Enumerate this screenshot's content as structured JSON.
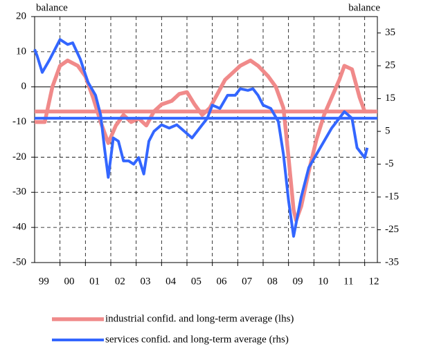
{
  "chart_data": {
    "type": "line",
    "ylabel": "balance",
    "y2label": "balance",
    "xlim": [
      1999,
      2012.5
    ],
    "xticks": [
      {
        "value": 1999.5,
        "label": "99"
      },
      {
        "value": 2000.5,
        "label": "00"
      },
      {
        "value": 2001.5,
        "label": "01"
      },
      {
        "value": 2002.5,
        "label": "02"
      },
      {
        "value": 2003.5,
        "label": "03"
      },
      {
        "value": 2004.5,
        "label": "04"
      },
      {
        "value": 2005.5,
        "label": "05"
      },
      {
        "value": 2006.5,
        "label": "06"
      },
      {
        "value": 2007.5,
        "label": "07"
      },
      {
        "value": 2008.5,
        "label": "08"
      },
      {
        "value": 2009.5,
        "label": "09"
      },
      {
        "value": 2010.5,
        "label": "10"
      },
      {
        "value": 2011.5,
        "label": "11"
      },
      {
        "value": 2012.5,
        "label": "12"
      }
    ],
    "xgrid": [
      2000,
      2001,
      2002,
      2003,
      2004,
      2005,
      2006,
      2007,
      2008,
      2009,
      2010,
      2011,
      2012
    ],
    "ylim": [
      -50,
      20
    ],
    "yticks": [
      -50,
      -40,
      -30,
      -20,
      -10,
      0,
      10,
      20
    ],
    "y2lim": [
      -35,
      40
    ],
    "y2ticks": [
      -35,
      -25,
      -15,
      -5,
      5,
      15,
      25,
      35
    ],
    "grid": true,
    "series": [
      {
        "name": "industrial confid. and long-term average (lhs)",
        "color": "#f08a8a",
        "axis": "y",
        "average": -7,
        "x": [
          1999.0,
          1999.4,
          1999.7,
          2000.0,
          2000.3,
          2000.7,
          2001.0,
          2001.3,
          2001.6,
          2001.9,
          2002.2,
          2002.5,
          2002.8,
          2003.1,
          2003.4,
          2003.7,
          2004.0,
          2004.4,
          2004.7,
          2005.0,
          2005.3,
          2005.6,
          2005.9,
          2006.2,
          2006.5,
          2006.8,
          2007.1,
          2007.5,
          2007.8,
          2008.2,
          2008.5,
          2008.8,
          2009.0,
          2009.2,
          2009.3,
          2009.5,
          2009.8,
          2010.1,
          2010.4,
          2010.7,
          2011.0,
          2011.2,
          2011.5,
          2011.8,
          2012.0,
          2012.3
        ],
        "values": [
          -10,
          -10,
          0,
          6,
          7.5,
          6,
          3,
          -3,
          -10,
          -16,
          -11,
          -8,
          -10,
          -9,
          -11,
          -7,
          -5,
          -4,
          -2,
          -1.5,
          -5,
          -8,
          -6,
          -2,
          2,
          4,
          6,
          7.5,
          6,
          3,
          0,
          -6,
          -20,
          -35,
          -38,
          -34,
          -24,
          -15,
          -8,
          -3,
          2,
          6,
          5,
          -3,
          -7,
          -7
        ]
      },
      {
        "name": "services confid. and long-term average (rhs)",
        "color": "#3366ff",
        "axis": "y2",
        "average": 9,
        "x": [
          1999.0,
          1999.1,
          1999.3,
          1999.6,
          1999.8,
          2000.0,
          2000.3,
          2000.5,
          2000.8,
          2001.1,
          2001.4,
          2001.6,
          2001.75,
          2001.9,
          2002.1,
          2002.3,
          2002.5,
          2002.7,
          2002.9,
          2003.1,
          2003.3,
          2003.5,
          2003.7,
          2004.0,
          2004.3,
          2004.6,
          2004.9,
          2005.2,
          2005.5,
          2005.8,
          2006.0,
          2006.3,
          2006.6,
          2006.9,
          2007.1,
          2007.4,
          2007.6,
          2007.8,
          2008.0,
          2008.3,
          2008.6,
          2008.8,
          2009.0,
          2009.2,
          2009.3,
          2009.5,
          2009.8,
          2010.1,
          2010.4,
          2010.7,
          2011.0,
          2011.2,
          2011.5,
          2011.7,
          2011.9,
          2012.0,
          2012.1
        ],
        "values": [
          30,
          28,
          23,
          27,
          30,
          33,
          31.5,
          32,
          27,
          20,
          16,
          10,
          0,
          -9,
          3,
          2,
          -4,
          -4,
          -5,
          -3,
          -8,
          2,
          5,
          7,
          6,
          7,
          5,
          3,
          6,
          9,
          13,
          12,
          16,
          16,
          18,
          17.5,
          18,
          16,
          13,
          12,
          8,
          -2,
          -16,
          -27,
          -23,
          -15,
          -6,
          -2,
          2,
          6,
          9,
          11,
          9,
          0,
          -2,
          -3,
          0
        ]
      }
    ]
  }
}
